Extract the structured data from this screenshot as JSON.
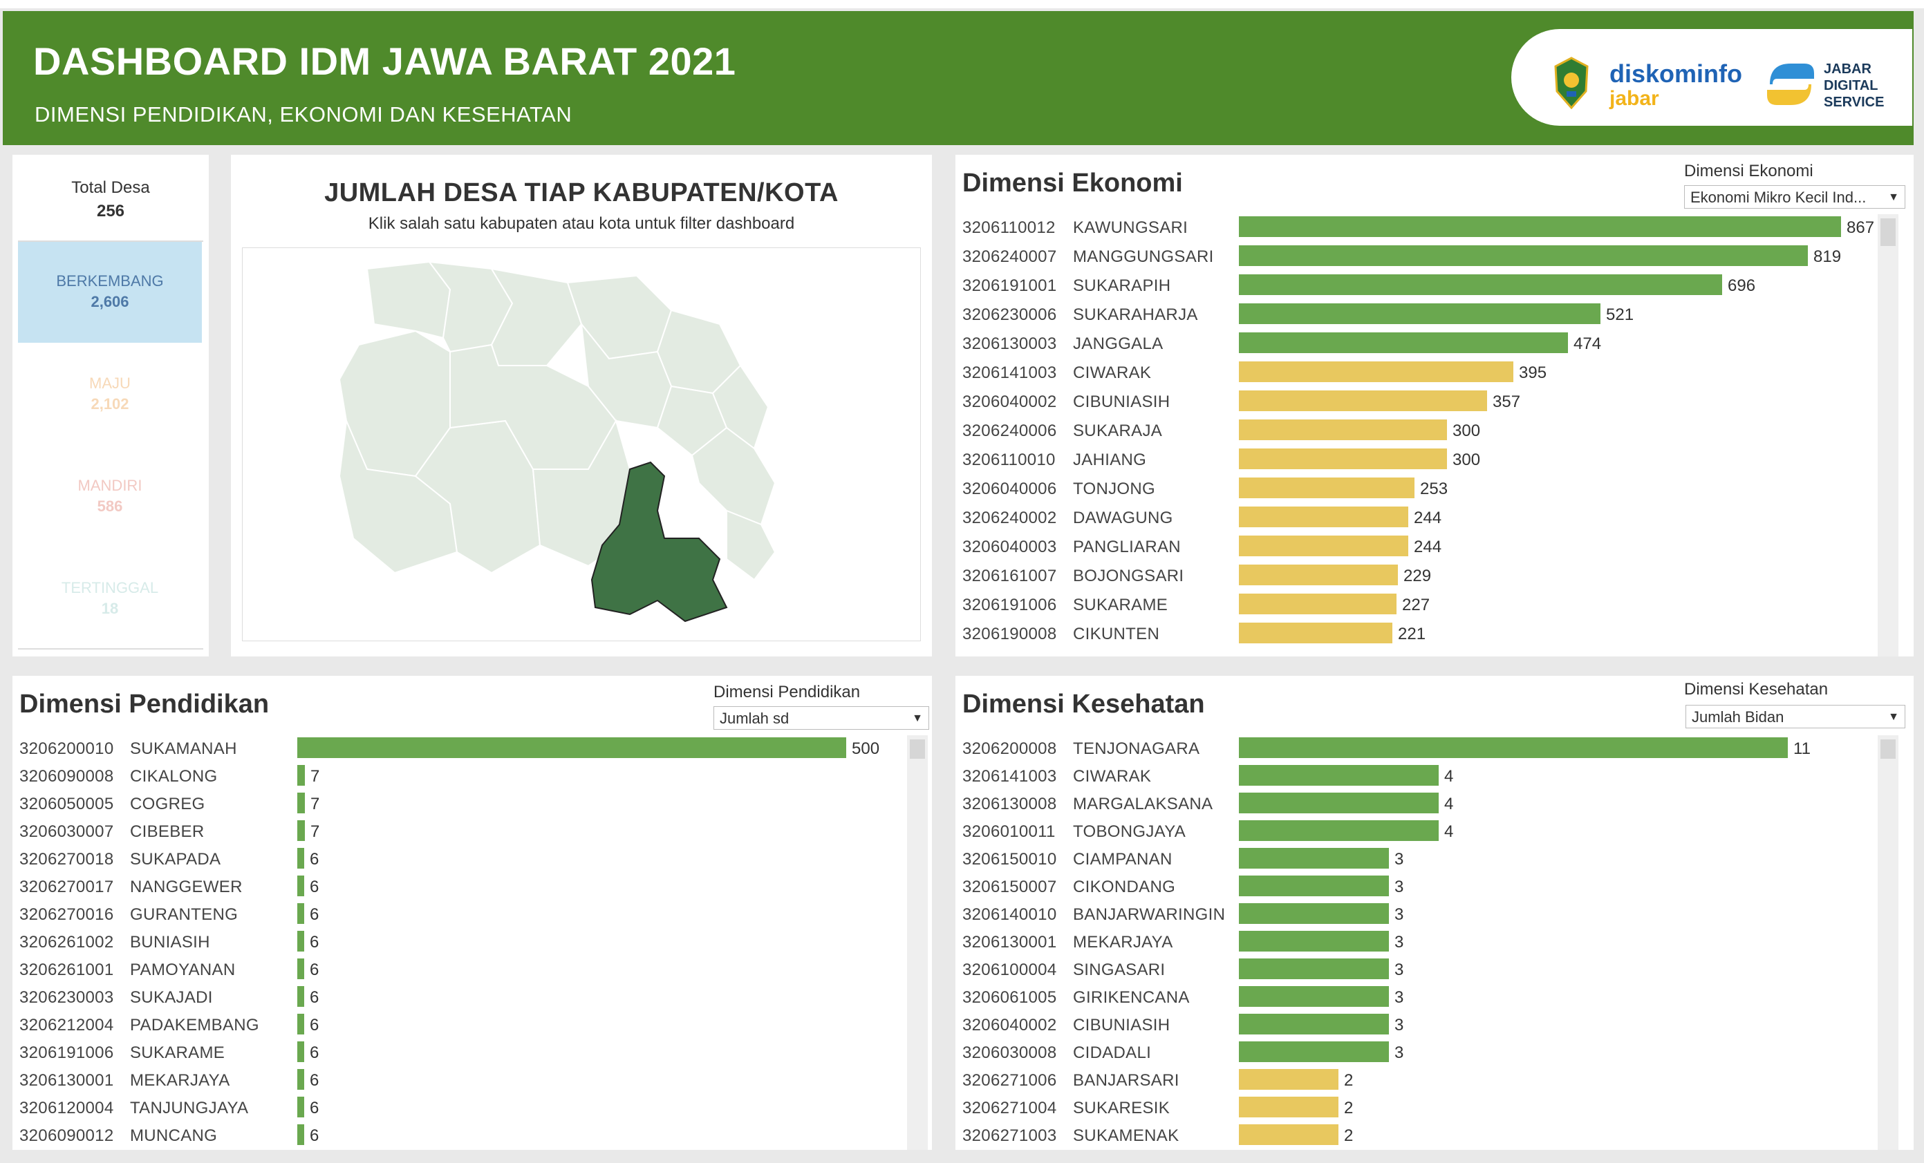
{
  "header": {
    "title": "DASHBOARD IDM JAWA BARAT 2021",
    "subtitle": "DIMENSI PENDIDIKAN, EKONOMI DAN KESEHATAN",
    "logo_diskominfo_line1": "diskominfo",
    "logo_diskominfo_line2": "jabar",
    "logo_jds": [
      "JABAR",
      "DIGITAL",
      "SERVICE"
    ]
  },
  "kpi": {
    "total_label": "Total Desa",
    "total_value": "256",
    "items": [
      {
        "label": "BERKEMBANG",
        "value": "2,606",
        "color": "#4e79a7",
        "bg": "#c6e3f2"
      },
      {
        "label": "MAJU",
        "value": "2,102",
        "color": "#f7d9b8",
        "bg": ""
      },
      {
        "label": "MANDIRI",
        "value": "586",
        "color": "#f2c9c3",
        "bg": ""
      },
      {
        "label": "TERTINGGAL",
        "value": "18",
        "color": "#d7ebe9",
        "bg": ""
      }
    ]
  },
  "map": {
    "title": "JUMLAH DESA TIAP KABUPATEN/KOTA",
    "subtitle": "Klik salah satu kabupaten atau kota untuk filter dashboard",
    "region_color": "#e3ebe2",
    "selected_color": "#3f7345"
  },
  "ekonomi": {
    "title": "Dimensi Ekonomi",
    "dropdown_label": "Dimensi Ekonomi",
    "dropdown_value": "Ekonomi Mikro Kecil Ind...",
    "max": 900,
    "rows": [
      {
        "code": "3206110012",
        "name": "KAWUNGSARI",
        "value": 867,
        "color": "#6aa84f"
      },
      {
        "code": "3206240007",
        "name": "MANGGUNGSARI",
        "value": 819,
        "color": "#6aa84f"
      },
      {
        "code": "3206191001",
        "name": "SUKARAPIH",
        "value": 696,
        "color": "#6aa84f"
      },
      {
        "code": "3206230006",
        "name": "SUKARAHARJA",
        "value": 521,
        "color": "#6aa84f"
      },
      {
        "code": "3206130003",
        "name": "JANGGALA",
        "value": 474,
        "color": "#6aa84f"
      },
      {
        "code": "3206141003",
        "name": "CIWARAK",
        "value": 395,
        "color": "#e8c85f"
      },
      {
        "code": "3206040002",
        "name": "CIBUNIASIH",
        "value": 357,
        "color": "#e8c85f"
      },
      {
        "code": "3206240006",
        "name": "SUKARAJA",
        "value": 300,
        "color": "#e8c85f"
      },
      {
        "code": "3206110010",
        "name": "JAHIANG",
        "value": 300,
        "color": "#e8c85f"
      },
      {
        "code": "3206040006",
        "name": "TONJONG",
        "value": 253,
        "color": "#e8c85f"
      },
      {
        "code": "3206240002",
        "name": "DAWAGUNG",
        "value": 244,
        "color": "#e8c85f"
      },
      {
        "code": "3206040003",
        "name": "PANGLIARAN",
        "value": 244,
        "color": "#e8c85f"
      },
      {
        "code": "3206161007",
        "name": "BOJONGSARI",
        "value": 229,
        "color": "#e8c85f"
      },
      {
        "code": "3206191006",
        "name": "SUKARAME",
        "value": 227,
        "color": "#e8c85f"
      },
      {
        "code": "3206190008",
        "name": "CIKUNTEN",
        "value": 221,
        "color": "#e8c85f"
      }
    ]
  },
  "pendidikan": {
    "title": "Dimensi Pendidikan",
    "dropdown_label": "Dimensi Pendidikan",
    "dropdown_value": "Jumlah sd",
    "max": 500,
    "rows": [
      {
        "code": "3206200010",
        "name": "SUKAMANAH",
        "value": 500,
        "color": "#6aa84f"
      },
      {
        "code": "3206090008",
        "name": "CIKALONG",
        "value": 7,
        "color": "#6aa84f"
      },
      {
        "code": "3206050005",
        "name": "COGREG",
        "value": 7,
        "color": "#6aa84f"
      },
      {
        "code": "3206030007",
        "name": "CIBEBER",
        "value": 7,
        "color": "#6aa84f"
      },
      {
        "code": "3206270018",
        "name": "SUKAPADA",
        "value": 6,
        "color": "#6aa84f"
      },
      {
        "code": "3206270017",
        "name": "NANGGEWER",
        "value": 6,
        "color": "#6aa84f"
      },
      {
        "code": "3206270016",
        "name": "GURANTENG",
        "value": 6,
        "color": "#6aa84f"
      },
      {
        "code": "3206261002",
        "name": "BUNIASIH",
        "value": 6,
        "color": "#6aa84f"
      },
      {
        "code": "3206261001",
        "name": "PAMOYANAN",
        "value": 6,
        "color": "#6aa84f"
      },
      {
        "code": "3206230003",
        "name": "SUKAJADI",
        "value": 6,
        "color": "#6aa84f"
      },
      {
        "code": "3206212004",
        "name": "PADAKEMBANG",
        "value": 6,
        "color": "#6aa84f"
      },
      {
        "code": "3206191006",
        "name": "SUKARAME",
        "value": 6,
        "color": "#6aa84f"
      },
      {
        "code": "3206130001",
        "name": "MEKARJAYA",
        "value": 6,
        "color": "#6aa84f"
      },
      {
        "code": "3206120004",
        "name": "TANJUNGJAYA",
        "value": 6,
        "color": "#6aa84f"
      },
      {
        "code": "3206090012",
        "name": "MUNCANG",
        "value": 6,
        "color": "#6aa84f"
      }
    ]
  },
  "kesehatan": {
    "title": "Dimensi Kesehatan",
    "dropdown_label": "Dimensi Kesehatan",
    "dropdown_value": "Jumlah Bidan",
    "max": 11,
    "rows": [
      {
        "code": "3206200008",
        "name": "TENJONAGARA",
        "value": 11,
        "color": "#6aa84f"
      },
      {
        "code": "3206141003",
        "name": "CIWARAK",
        "value": 4,
        "color": "#6aa84f"
      },
      {
        "code": "3206130008",
        "name": "MARGALAKSANA",
        "value": 4,
        "color": "#6aa84f"
      },
      {
        "code": "3206010011",
        "name": "TOBONGJAYA",
        "value": 4,
        "color": "#6aa84f"
      },
      {
        "code": "3206150010",
        "name": "CIAMPANAN",
        "value": 3,
        "color": "#6aa84f"
      },
      {
        "code": "3206150007",
        "name": "CIKONDANG",
        "value": 3,
        "color": "#6aa84f"
      },
      {
        "code": "3206140010",
        "name": "BANJARWARINGIN",
        "value": 3,
        "color": "#6aa84f"
      },
      {
        "code": "3206130001",
        "name": "MEKARJAYA",
        "value": 3,
        "color": "#6aa84f"
      },
      {
        "code": "3206100004",
        "name": "SINGASARI",
        "value": 3,
        "color": "#6aa84f"
      },
      {
        "code": "3206061005",
        "name": "GIRIKENCANA",
        "value": 3,
        "color": "#6aa84f"
      },
      {
        "code": "3206040002",
        "name": "CIBUNIASIH",
        "value": 3,
        "color": "#6aa84f"
      },
      {
        "code": "3206030008",
        "name": "CIDADALI",
        "value": 3,
        "color": "#6aa84f"
      },
      {
        "code": "3206271006",
        "name": "BANJARSARI",
        "value": 2,
        "color": "#e8c85f"
      },
      {
        "code": "3206271004",
        "name": "SUKARESIK",
        "value": 2,
        "color": "#e8c85f"
      },
      {
        "code": "3206271003",
        "name": "SUKAMENAK",
        "value": 2,
        "color": "#e8c85f"
      }
    ]
  }
}
